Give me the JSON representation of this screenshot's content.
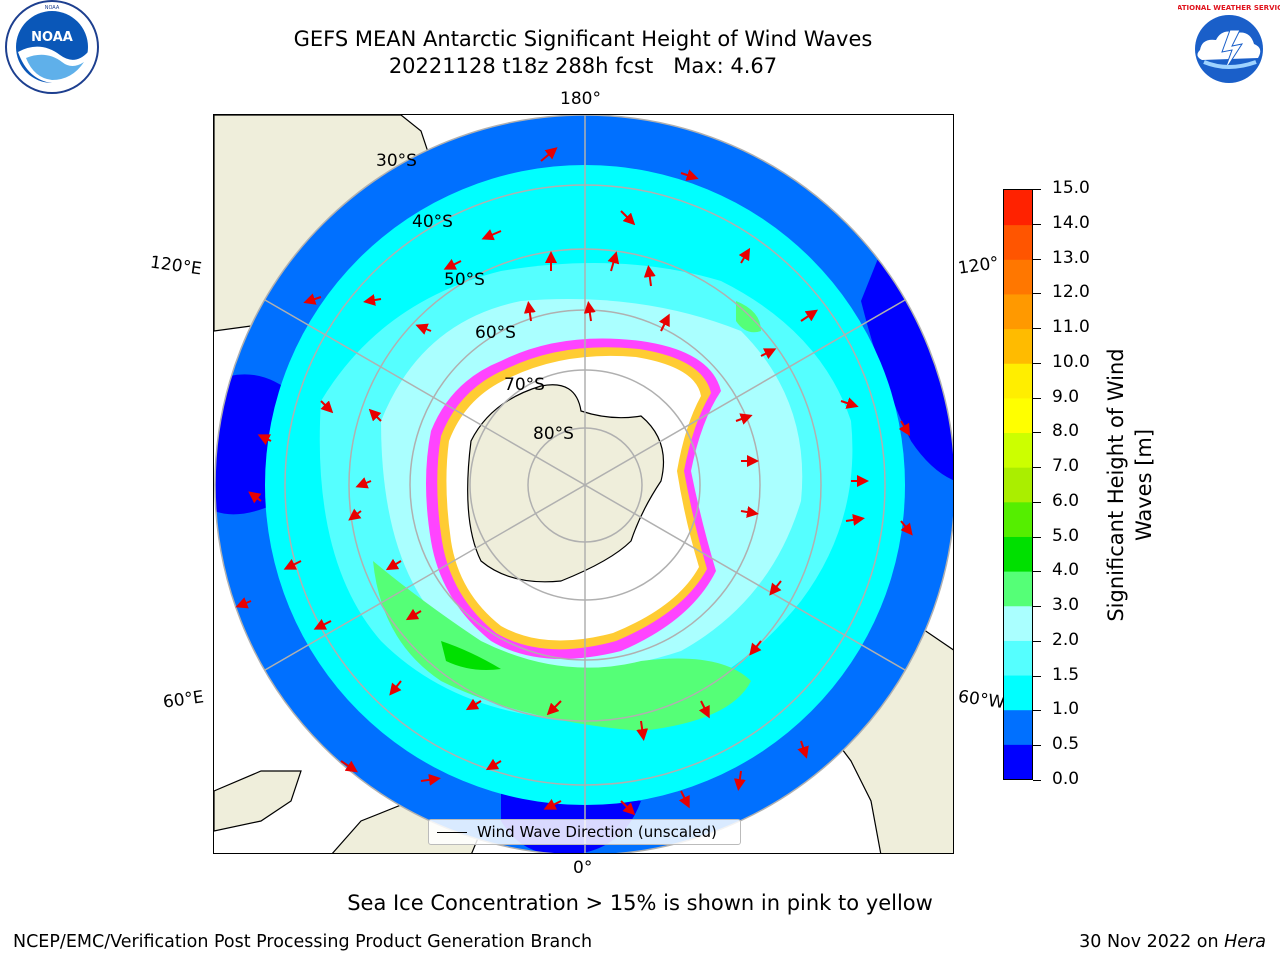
{
  "title": {
    "line1": "GEFS MEAN Antarctic Significant Height of Wind Waves",
    "line2": "20221128 t18z 288h fcst   Max: 4.67"
  },
  "map": {
    "projection": "south-polar-stereographic",
    "longitude_labels": {
      "top": "180°",
      "bottom": "0°",
      "left_upper": "120°E",
      "left_lower": "60°E",
      "right_upper": "120°",
      "right_lower": "60°W"
    },
    "latitude_labels": [
      "30°S",
      "40°S",
      "50°S",
      "60°S",
      "70°S",
      "80°S"
    ],
    "colors": {
      "land": "#efeedb",
      "ocean_low": "#0000ff",
      "ocean_mid": "#00ffff",
      "ocean_high": "#55ff77",
      "ice": "#ffffff",
      "ice_edge": "#ff44ff",
      "arrow": "#e80000",
      "grid": "#b0b0b0"
    }
  },
  "legend": {
    "label": "Wind Wave Direction (unscaled)"
  },
  "colorbar": {
    "title": "Significant Height of Wind Waves [m]",
    "title_line1": "Significant Height of Wind",
    "title_line2": "Waves [m]",
    "ticks": [
      "15.0",
      "14.0",
      "13.0",
      "12.0",
      "11.0",
      "10.0",
      "9.0",
      "8.0",
      "7.0",
      "6.0",
      "5.0",
      "4.0",
      "3.0",
      "2.0",
      "1.5",
      "1.0",
      "0.5",
      "0.0"
    ],
    "colors": [
      "#0000ff",
      "#0070ff",
      "#00ffff",
      "#55ffff",
      "#aaffff",
      "#55ff77",
      "#00e000",
      "#55ee00",
      "#aaee00",
      "#ccff00",
      "#ffff00",
      "#ffee00",
      "#ffbb00",
      "#ff9900",
      "#ff7700",
      "#ff5500",
      "#ff2200"
    ]
  },
  "note": "Sea Ice Concentration > 15% is shown in pink to yellow",
  "footer": {
    "left": "NCEP/EMC/Verification Post Processing Product Generation Branch",
    "right_date": "30 Nov 2022 on ",
    "right_host": "Hera"
  },
  "logos": {
    "left": "NOAA",
    "right": "NATIONAL WEATHER SERVICE"
  }
}
